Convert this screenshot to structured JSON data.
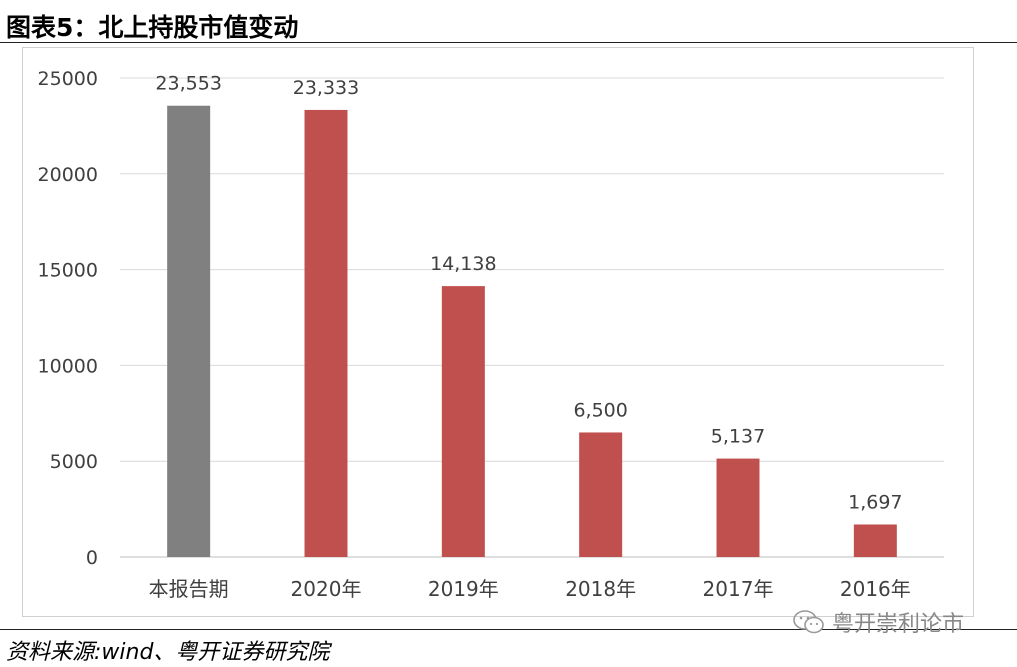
{
  "figure": {
    "title": "图表5：北上持股市值变动",
    "source": "资料来源:wind、粤开证券研究院",
    "watermark": "粤开崇利论市"
  },
  "colors": {
    "current_bar": "#808080",
    "history_bar": "#c0504d",
    "grid": "#d9d9d9",
    "axis_text": "#404040"
  },
  "chart_data": {
    "type": "bar",
    "categories": [
      "本报告期",
      "2020年",
      "2019年",
      "2018年",
      "2017年",
      "2016年"
    ],
    "values": [
      23553,
      23333,
      14138,
      6500,
      5137,
      1697
    ],
    "value_labels": [
      "23,553",
      "23,333",
      "14,138",
      "6,500",
      "5,137",
      "1,697"
    ],
    "ylim": [
      0,
      25000
    ],
    "yticks": [
      0,
      5000,
      10000,
      15000,
      20000,
      25000
    ],
    "ytick_labels": [
      "0",
      "5000",
      "10000",
      "15000",
      "20000",
      "25000"
    ],
    "grid": true,
    "legend": "none"
  }
}
